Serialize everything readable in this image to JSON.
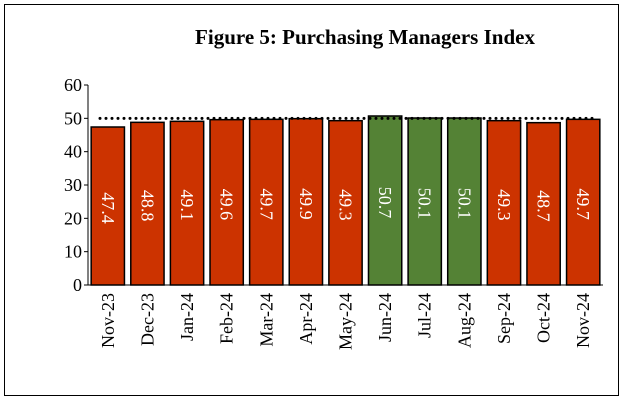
{
  "chart_data": {
    "type": "bar",
    "title": "Figure 5: Purchasing Managers Index",
    "categories": [
      "Nov-23",
      "Dec-23",
      "Jan-24",
      "Feb-24",
      "Mar-24",
      "Apr-24",
      "May-24",
      "Jun-24",
      "Jul-24",
      "Aug-24",
      "Sep-24",
      "Oct-24",
      "Nov-24"
    ],
    "values": [
      47.4,
      48.8,
      49.1,
      49.6,
      49.7,
      49.9,
      49.3,
      50.7,
      50.1,
      50.1,
      49.3,
      48.7,
      49.7
    ],
    "colors": [
      "#cc3300",
      "#cc3300",
      "#cc3300",
      "#cc3300",
      "#cc3300",
      "#cc3300",
      "#cc3300",
      "#548235",
      "#548235",
      "#548235",
      "#cc3300",
      "#cc3300",
      "#cc3300"
    ],
    "reference_line": 50,
    "ylim": [
      0,
      60
    ],
    "yticks": [
      0,
      10,
      20,
      30,
      40,
      50,
      60
    ],
    "grid": false
  }
}
